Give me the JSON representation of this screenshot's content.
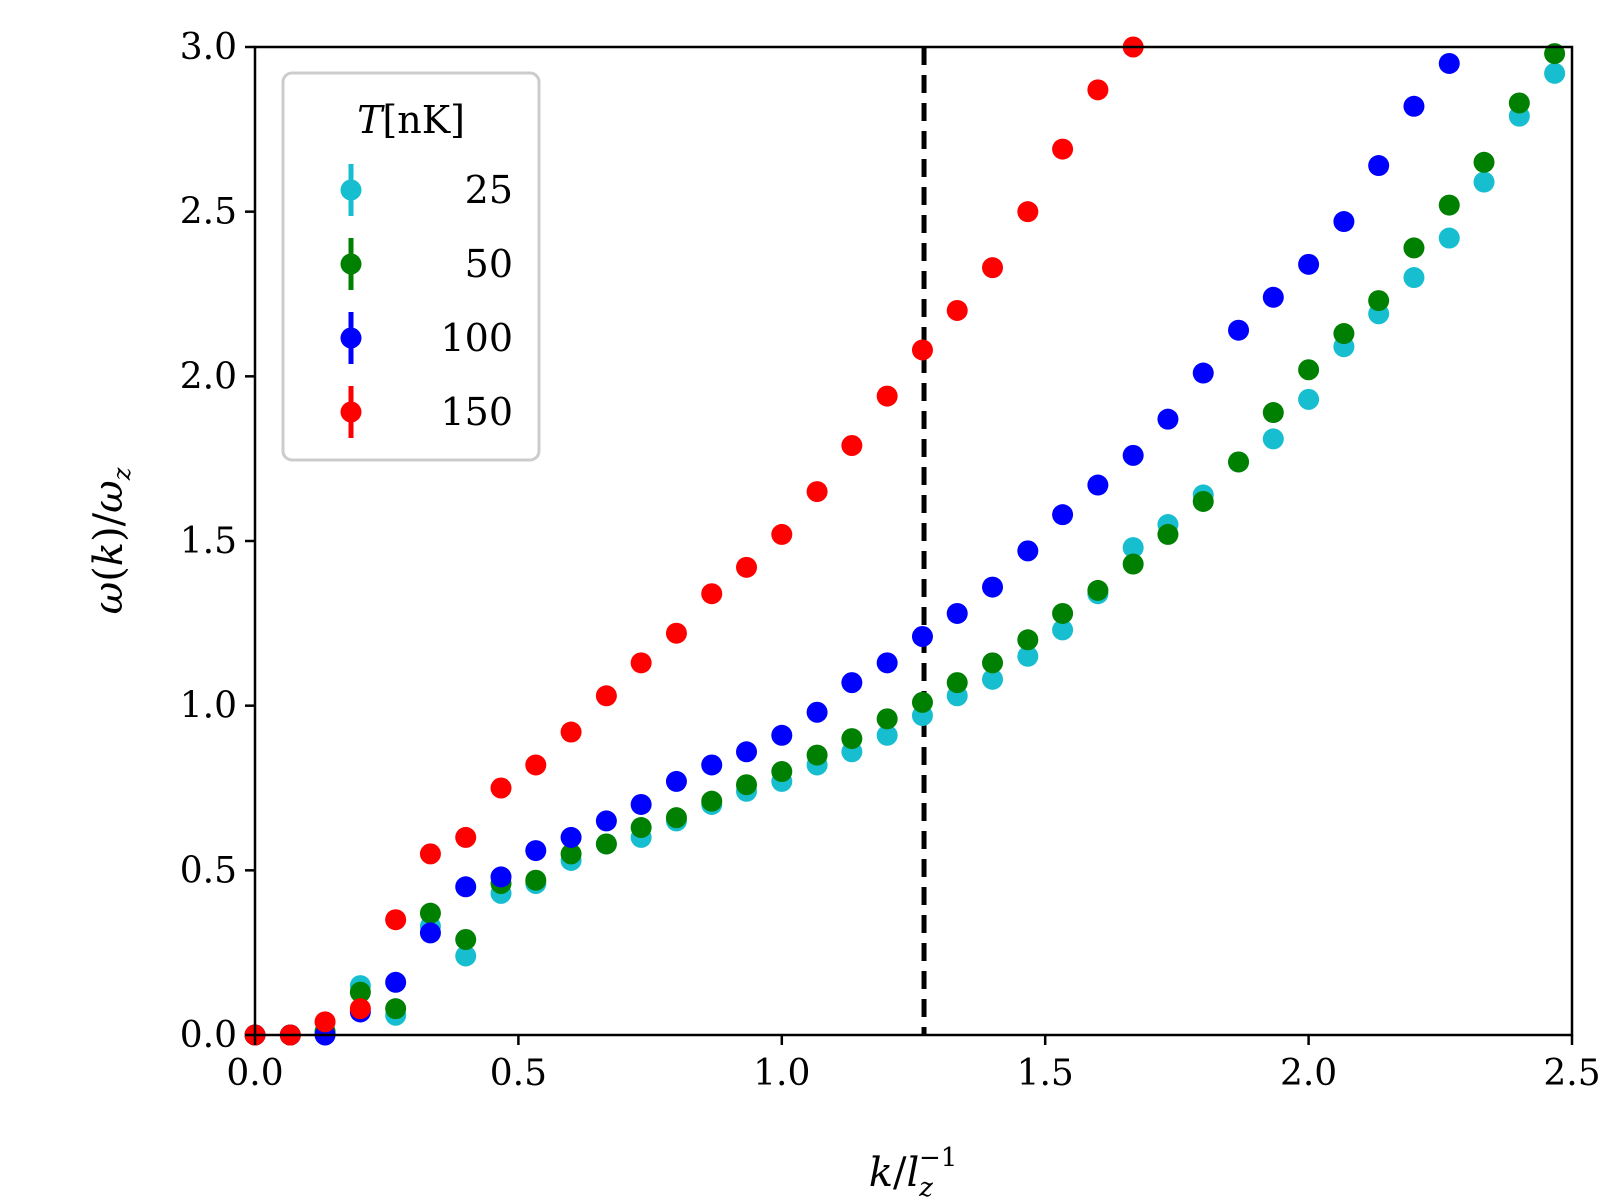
{
  "chart_data": {
    "type": "scatter",
    "title": "",
    "xlabel": "k/l_z^-1",
    "xlabel_parts": {
      "k": "k",
      "slash": "/",
      "l": "l",
      "sub": "z",
      "sup": "−1"
    },
    "ylabel": "ω(k)/ω_z",
    "ylabel_parts": {
      "omega": "ω",
      "open": "(",
      "k": "k",
      "close": ")/",
      "omega2": "ω",
      "sub": "z"
    },
    "xlim": [
      0.0,
      2.5
    ],
    "ylim": [
      0.0,
      3.0
    ],
    "xticks": [
      "0.0",
      "0.5",
      "1.0",
      "1.5",
      "2.0",
      "2.5"
    ],
    "yticks": [
      "0.0",
      "0.5",
      "1.0",
      "1.5",
      "2.0",
      "2.5",
      "3.0"
    ],
    "grid": false,
    "vline": {
      "x": 1.27,
      "style": "dashed",
      "color": "#000000"
    },
    "legend": {
      "placement": "top-left",
      "title_var": "T",
      "title_unit": "[nK]"
    },
    "series": [
      {
        "name": "25",
        "color": "#17becf",
        "x": [
          0.0,
          0.067,
          0.133,
          0.2,
          0.267,
          0.333,
          0.4,
          0.467,
          0.533,
          0.6,
          0.667,
          0.733,
          0.8,
          0.867,
          0.933,
          1.0,
          1.067,
          1.133,
          1.2,
          1.267,
          1.333,
          1.4,
          1.467,
          1.533,
          1.6,
          1.667,
          1.733,
          1.8,
          1.867,
          1.933,
          2.0,
          2.067,
          2.133,
          2.2,
          2.267,
          2.333,
          2.4,
          2.467
        ],
        "y": [
          0.0,
          0.0,
          0.01,
          0.15,
          0.06,
          0.33,
          0.24,
          0.43,
          0.46,
          0.53,
          0.58,
          0.6,
          0.65,
          0.7,
          0.74,
          0.77,
          0.82,
          0.86,
          0.91,
          0.97,
          1.03,
          1.08,
          1.15,
          1.23,
          1.34,
          1.48,
          1.55,
          1.64,
          1.74,
          1.81,
          1.93,
          2.09,
          2.19,
          2.3,
          2.42,
          2.59,
          2.79,
          2.92
        ]
      },
      {
        "name": "50",
        "color": "#008000",
        "x": [
          0.0,
          0.067,
          0.133,
          0.2,
          0.267,
          0.333,
          0.4,
          0.467,
          0.533,
          0.6,
          0.667,
          0.733,
          0.8,
          0.867,
          0.933,
          1.0,
          1.067,
          1.133,
          1.2,
          1.267,
          1.333,
          1.4,
          1.467,
          1.533,
          1.6,
          1.667,
          1.733,
          1.8,
          1.867,
          1.933,
          2.0,
          2.067,
          2.133,
          2.2,
          2.267,
          2.333,
          2.4,
          2.467
        ],
        "y": [
          0.0,
          0.0,
          0.01,
          0.13,
          0.08,
          0.37,
          0.29,
          0.46,
          0.47,
          0.55,
          0.58,
          0.63,
          0.66,
          0.71,
          0.76,
          0.8,
          0.85,
          0.9,
          0.96,
          1.01,
          1.07,
          1.13,
          1.2,
          1.28,
          1.35,
          1.43,
          1.52,
          1.62,
          1.74,
          1.89,
          2.02,
          2.13,
          2.23,
          2.39,
          2.52,
          2.65,
          2.83,
          2.98
        ]
      },
      {
        "name": "100",
        "color": "#0000ff",
        "x": [
          0.0,
          0.067,
          0.133,
          0.2,
          0.267,
          0.333,
          0.4,
          0.467,
          0.533,
          0.6,
          0.667,
          0.733,
          0.8,
          0.867,
          0.933,
          1.0,
          1.067,
          1.133,
          1.2,
          1.267,
          1.333,
          1.4,
          1.467,
          1.533,
          1.6,
          1.667,
          1.733,
          1.8,
          1.867,
          1.933,
          2.0,
          2.067,
          2.133,
          2.2,
          2.267
        ],
        "y": [
          0.0,
          0.0,
          0.0,
          0.07,
          0.16,
          0.31,
          0.45,
          0.48,
          0.56,
          0.6,
          0.65,
          0.7,
          0.77,
          0.82,
          0.86,
          0.91,
          0.98,
          1.07,
          1.13,
          1.21,
          1.28,
          1.36,
          1.47,
          1.58,
          1.67,
          1.76,
          1.87,
          2.01,
          2.14,
          2.24,
          2.34,
          2.47,
          2.64,
          2.82,
          2.95
        ]
      },
      {
        "name": "150",
        "color": "#ff0000",
        "x": [
          0.0,
          0.067,
          0.133,
          0.2,
          0.267,
          0.333,
          0.4,
          0.467,
          0.533,
          0.6,
          0.667,
          0.733,
          0.8,
          0.867,
          0.933,
          1.0,
          1.067,
          1.133,
          1.2,
          1.267,
          1.333,
          1.4,
          1.467,
          1.533,
          1.6,
          1.667
        ],
        "y": [
          0.0,
          0.0,
          0.04,
          0.08,
          0.35,
          0.55,
          0.6,
          0.75,
          0.82,
          0.92,
          1.03,
          1.13,
          1.22,
          1.34,
          1.42,
          1.52,
          1.65,
          1.79,
          1.94,
          2.08,
          2.2,
          2.33,
          2.5,
          2.69,
          2.87,
          3.0
        ]
      }
    ]
  }
}
